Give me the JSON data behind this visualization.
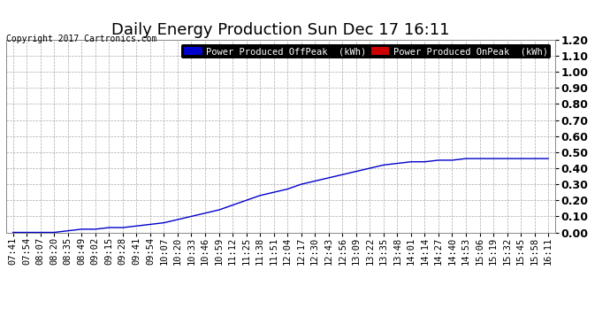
{
  "title": "Daily Energy Production Sun Dec 17 16:11",
  "copyright_text": "Copyright 2017 Cartronics.com",
  "legend_offpeak_label": "Power Produced OffPeak  (kWh)",
  "legend_onpeak_label": "Power Produced OnPeak  (kWh)",
  "legend_offpeak_color": "#0000cc",
  "legend_onpeak_color": "#cc0000",
  "line_color": "#0000cc",
  "background_color": "#ffffff",
  "plot_bg_color": "#ffffff",
  "grid_color": "#aaaaaa",
  "ylim": [
    0.0,
    1.2
  ],
  "yticks": [
    0.0,
    0.1,
    0.2,
    0.3,
    0.4,
    0.5,
    0.6,
    0.7,
    0.8,
    0.9,
    1.0,
    1.1,
    1.2
  ],
  "x_labels": [
    "07:41",
    "07:54",
    "08:07",
    "08:20",
    "08:35",
    "08:49",
    "09:02",
    "09:15",
    "09:28",
    "09:41",
    "09:54",
    "10:07",
    "10:20",
    "10:33",
    "10:46",
    "10:59",
    "11:12",
    "11:25",
    "11:38",
    "11:51",
    "12:04",
    "12:17",
    "12:30",
    "12:43",
    "12:56",
    "13:09",
    "13:22",
    "13:35",
    "13:48",
    "14:01",
    "14:14",
    "14:27",
    "14:40",
    "14:53",
    "15:06",
    "15:19",
    "15:32",
    "15:45",
    "15:58",
    "16:11"
  ],
  "y_values": [
    0.0,
    0.0,
    0.0,
    0.0,
    0.01,
    0.02,
    0.02,
    0.03,
    0.03,
    0.04,
    0.05,
    0.06,
    0.08,
    0.1,
    0.12,
    0.14,
    0.17,
    0.2,
    0.23,
    0.25,
    0.27,
    0.3,
    0.32,
    0.34,
    0.36,
    0.38,
    0.4,
    0.42,
    0.43,
    0.44,
    0.44,
    0.45,
    0.45,
    0.46,
    0.46,
    0.46,
    0.46,
    0.46,
    0.46,
    0.46
  ],
  "title_fontsize": 13,
  "tick_fontsize": 7.5,
  "ytick_fontsize": 9,
  "copyright_fontsize": 7,
  "legend_fontsize": 7.5
}
